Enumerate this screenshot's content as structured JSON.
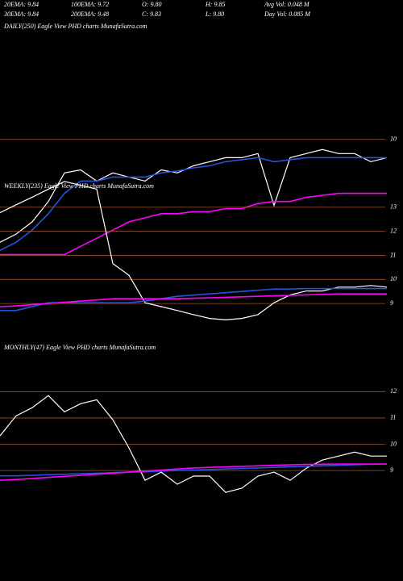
{
  "header": [
    [
      "20EMA: 9.84",
      "100EMA: 9.72",
      "O: 9.80",
      "H: 9.85",
      "Avg Vol: 0.048 M"
    ],
    [
      "30EMA: 9.84",
      "200EMA: 9.48",
      "C: 9.83",
      "L: 9.80",
      "Day Vol: 0.085 M"
    ]
  ],
  "chart_data": [
    {
      "type": "line",
      "title": "DAILY(250) Eagle View PHD charts MunafaSutra.com",
      "ylim": [
        8.2,
        10.1
      ],
      "yticks": [
        10
      ],
      "grid": true,
      "series": [
        {
          "name": "Price",
          "color": "#ffffff",
          "values": [
            8.99,
            9.07,
            9.19,
            9.39,
            9.67,
            9.7,
            9.59,
            9.67,
            9.63,
            9.59,
            9.7,
            9.67,
            9.74,
            9.78,
            9.82,
            9.82,
            9.86,
            9.35,
            9.82,
            9.86,
            9.9,
            9.86,
            9.86,
            9.78,
            9.82
          ]
        },
        {
          "name": "20EMA",
          "color": "#2255dd",
          "values": [
            8.91,
            8.99,
            9.11,
            9.27,
            9.47,
            9.59,
            9.59,
            9.63,
            9.63,
            9.63,
            9.67,
            9.69,
            9.72,
            9.74,
            9.78,
            9.8,
            9.82,
            9.78,
            9.8,
            9.82,
            9.82,
            9.82,
            9.82,
            9.82,
            9.82
          ]
        },
        {
          "name": "200EMA",
          "color": "#ff00ff",
          "values": [
            8.87,
            8.87,
            8.87,
            8.87,
            8.87,
            8.95,
            9.03,
            9.11,
            9.19,
            9.23,
            9.27,
            9.27,
            9.29,
            9.29,
            9.32,
            9.32,
            9.37,
            9.39,
            9.39,
            9.43,
            9.45,
            9.47,
            9.47,
            9.47,
            9.47
          ]
        }
      ]
    },
    {
      "type": "line",
      "title": "WEEKLY(235) Eagle View PHD charts MunafaSutra.com",
      "ylim": [
        8.2,
        14.3
      ],
      "yticks": [
        13,
        12,
        11,
        10,
        9
      ],
      "grid": true,
      "series": [
        {
          "name": "Price",
          "color": "#ffffff",
          "values": [
            12.77,
            13.1,
            13.42,
            13.75,
            14.07,
            13.91,
            13.75,
            10.66,
            10.17,
            9.03,
            8.87,
            8.71,
            8.54,
            8.38,
            8.32,
            8.38,
            8.54,
            9.03,
            9.36,
            9.52,
            9.52,
            9.68,
            9.68,
            9.75,
            9.68
          ]
        },
        {
          "name": "20EMA",
          "color": "#2255dd",
          "values": [
            8.71,
            8.71,
            8.87,
            9.03,
            9.03,
            9.03,
            9.03,
            9.03,
            9.03,
            9.1,
            9.2,
            9.3,
            9.35,
            9.4,
            9.45,
            9.5,
            9.55,
            9.6,
            9.6,
            9.62,
            9.62,
            9.62,
            9.62,
            9.62,
            9.62
          ]
        },
        {
          "name": "200EMA",
          "color": "#ff00ff",
          "values": [
            8.87,
            8.9,
            8.95,
            9.0,
            9.05,
            9.1,
            9.15,
            9.2,
            9.2,
            9.2,
            9.2,
            9.2,
            9.22,
            9.24,
            9.26,
            9.28,
            9.3,
            9.32,
            9.34,
            9.36,
            9.38,
            9.4,
            9.4,
            9.4,
            9.4
          ]
        }
      ]
    },
    {
      "type": "line",
      "title": "MONTHLY(47) Eagle View PHD charts MunafaSutra.com",
      "ylim": [
        7.9,
        12.5
      ],
      "yticks": [
        12,
        11,
        10,
        9
      ],
      "grid": true,
      "series": [
        {
          "name": "Price",
          "color": "#ffffff",
          "values": [
            10.32,
            11.08,
            11.39,
            11.85,
            11.23,
            11.54,
            11.69,
            10.93,
            9.86,
            8.63,
            8.94,
            8.48,
            8.79,
            8.79,
            8.17,
            8.33,
            8.79,
            8.94,
            8.63,
            9.09,
            9.4,
            9.55,
            9.7,
            9.55,
            9.55
          ]
        },
        {
          "name": "20EMA",
          "color": "#2255dd",
          "values": [
            8.8,
            8.8,
            8.82,
            8.84,
            8.86,
            8.88,
            8.9,
            8.92,
            8.94,
            8.96,
            8.98,
            9.0,
            9.02,
            9.04,
            9.06,
            9.08,
            9.1,
            9.12,
            9.14,
            9.16,
            9.18,
            9.2,
            9.22,
            9.24,
            9.25
          ]
        },
        {
          "name": "200EMA",
          "color": "#ff00ff",
          "values": [
            8.63,
            8.66,
            8.7,
            8.74,
            8.78,
            8.82,
            8.86,
            8.9,
            8.94,
            8.98,
            9.02,
            9.06,
            9.1,
            9.12,
            9.14,
            9.16,
            9.18,
            9.2,
            9.22,
            9.23,
            9.24,
            9.25,
            9.25,
            9.25,
            9.25
          ]
        }
      ]
    }
  ]
}
